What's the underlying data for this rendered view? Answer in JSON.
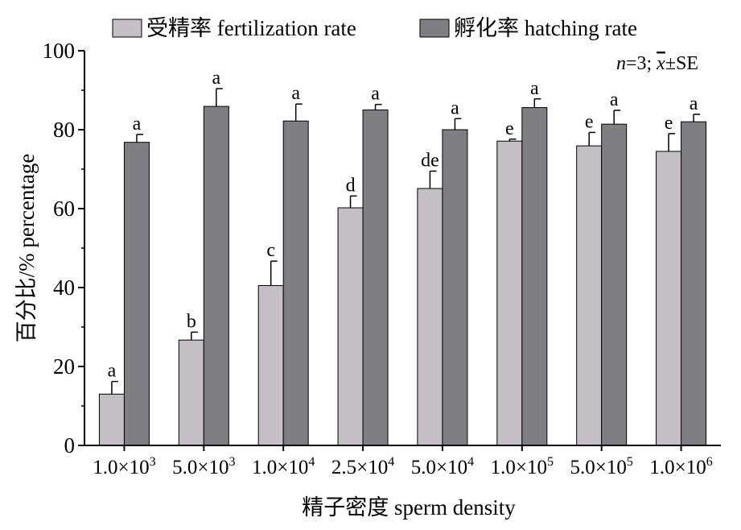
{
  "chart_data": {
    "type": "bar",
    "xlabel": "精子密度 sperm density",
    "ylabel": "百分比/% percentage",
    "ylim": [
      0,
      100
    ],
    "yticks": [
      0,
      20,
      40,
      60,
      80,
      100
    ],
    "annotation": {
      "italic_n": "n",
      "n_rest": "=3; ",
      "italic_x": "x",
      "x_rest": "±SE"
    },
    "legend_position": "top",
    "categories": [
      {
        "mant": "1.0×10",
        "exp": "3"
      },
      {
        "mant": "5.0×10",
        "exp": "3"
      },
      {
        "mant": "1.0×10",
        "exp": "4"
      },
      {
        "mant": "2.5×10",
        "exp": "4"
      },
      {
        "mant": "5.0×10",
        "exp": "4"
      },
      {
        "mant": "1.0×10",
        "exp": "5"
      },
      {
        "mant": "5.0×10",
        "exp": "5"
      },
      {
        "mant": "1.0×10",
        "exp": "6"
      }
    ],
    "series": [
      {
        "name": "受精率 fertilization rate",
        "color": "#c3bfc5",
        "values": [
          13,
          26.7,
          40.5,
          60.2,
          65.1,
          77.1,
          75.9,
          74.5
        ],
        "errors": [
          3.2,
          2.0,
          6.2,
          3.0,
          4.4,
          0.5,
          3.4,
          4.5
        ],
        "labels": [
          "a",
          "b",
          "c",
          "d",
          "de",
          "e",
          "e",
          "e"
        ]
      },
      {
        "name": "孵化率 hatching rate",
        "color": "#7f7e82",
        "values": [
          76.8,
          85.9,
          82.2,
          85.0,
          80.0,
          85.6,
          81.4,
          82.0
        ],
        "errors": [
          2.0,
          4.5,
          4.3,
          1.4,
          2.8,
          2.2,
          3.5,
          1.9
        ],
        "labels": [
          "a",
          "a",
          "a",
          "a",
          "a",
          "a",
          "a",
          "a"
        ]
      }
    ]
  }
}
